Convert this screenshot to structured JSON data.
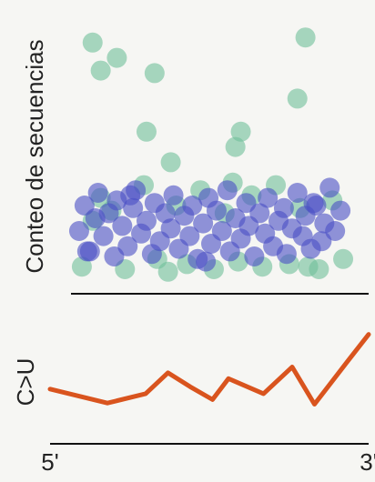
{
  "chart_data": [
    {
      "type": "scatter",
      "ylabel": "Conteo de secuencias",
      "xlim": [
        0,
        100
      ],
      "ylim": [
        0,
        100
      ],
      "series": [
        {
          "color": "#6fbf9a",
          "x": [
            6,
            15,
            9,
            29,
            85,
            82,
            26,
            61,
            59,
            35,
            2,
            9,
            13,
            18,
            25,
            30,
            37,
            41,
            46,
            51,
            55,
            60,
            65,
            69,
            74,
            79,
            83,
            90,
            95,
            99,
            6,
            34,
            58,
            86
          ],
          "values": [
            94,
            88,
            83,
            82,
            96,
            72,
            59,
            59,
            53,
            47,
            6,
            33,
            28,
            5,
            38,
            9,
            30,
            7,
            36,
            5,
            27,
            8,
            34,
            6,
            38,
            7,
            29,
            5,
            32,
            9,
            24,
            4,
            39,
            6
          ]
        },
        {
          "color": "#4a4fc4",
          "x": [
            1,
            3,
            5,
            7,
            8,
            10,
            12,
            14,
            15,
            17,
            19,
            21,
            22,
            24,
            26,
            28,
            29,
            31,
            33,
            35,
            36,
            38,
            40,
            42,
            43,
            45,
            47,
            49,
            50,
            52,
            54,
            56,
            57,
            59,
            61,
            63,
            64,
            66,
            68,
            70,
            71,
            73,
            75,
            77,
            78,
            80,
            82,
            84,
            85,
            87,
            89,
            91,
            92,
            94,
            96,
            98,
            4,
            20,
            48,
            88
          ],
          "values": [
            20,
            30,
            12,
            25,
            35,
            18,
            27,
            10,
            32,
            22,
            14,
            29,
            36,
            19,
            24,
            11,
            31,
            16,
            27,
            21,
            34,
            13,
            26,
            18,
            30,
            9,
            23,
            33,
            15,
            28,
            20,
            36,
            12,
            25,
            17,
            31,
            22,
            10,
            27,
            19,
            33,
            14,
            24,
            29,
            11,
            21,
            35,
            18,
            26,
            13,
            30,
            16,
            23,
            37,
            20,
            28,
            12,
            34,
            8,
            31
          ]
        }
      ]
    },
    {
      "type": "line",
      "ylabel": "C>U",
      "xlim": [
        0,
        100
      ],
      "ylim": [
        0,
        100
      ],
      "xticks": [
        {
          "value": 0,
          "label": "5'"
        },
        {
          "value": 100,
          "label": "3'"
        }
      ],
      "series": [
        {
          "color": "#d9541e",
          "x": [
            0,
            18,
            30,
            37,
            44,
            51,
            56,
            67,
            76,
            83,
            94,
            100
          ],
          "values": [
            47,
            35,
            43,
            61,
            49,
            38,
            56,
            43,
            66,
            34,
            73,
            94
          ]
        }
      ]
    }
  ]
}
